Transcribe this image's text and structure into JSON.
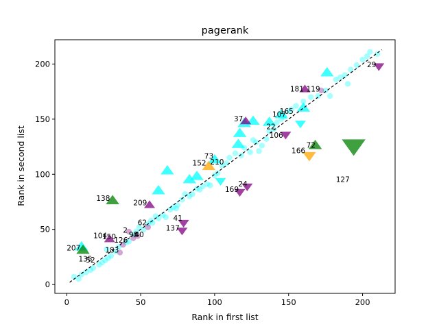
{
  "chart_data": {
    "type": "scatter",
    "title": "pagerank",
    "xlabel": "Rank in first list",
    "ylabel": "Rank in second list",
    "xlim": [
      -8,
      222
    ],
    "ylim": [
      -8,
      222
    ],
    "x_ticks": [
      0,
      50,
      100,
      150,
      200
    ],
    "y_ticks": [
      0,
      50,
      100,
      150,
      200
    ],
    "grid": false,
    "reference_line": {
      "from": [
        2,
        2
      ],
      "to": [
        213,
        213
      ],
      "style": "dashed",
      "color": "#000000"
    },
    "colors": {
      "cyan": "#00ffff",
      "purple": "#800080",
      "green": "#008000",
      "orange": "#ffa500"
    },
    "series": [
      {
        "marker": "circle",
        "color": "#00ffff",
        "points": [
          [
            5,
            7
          ],
          [
            8,
            5
          ],
          [
            10,
            9
          ],
          [
            13,
            11
          ],
          [
            16,
            13
          ],
          [
            18,
            15
          ],
          [
            22,
            18
          ],
          [
            24,
            20
          ],
          [
            26,
            22
          ],
          [
            28,
            24
          ],
          [
            30,
            26
          ],
          [
            33,
            30
          ],
          [
            27,
            32
          ],
          [
            35,
            34
          ],
          [
            40,
            38
          ],
          [
            42,
            39
          ],
          [
            45,
            45
          ],
          [
            47,
            48
          ],
          [
            49,
            52
          ],
          [
            52,
            50
          ],
          [
            55,
            55
          ],
          [
            57,
            58
          ],
          [
            58,
            56
          ],
          [
            60,
            62
          ],
          [
            62,
            60
          ],
          [
            65,
            63
          ],
          [
            67,
            61
          ],
          [
            70,
            68
          ],
          [
            72,
            70
          ],
          [
            74,
            69
          ],
          [
            75,
            72
          ],
          [
            78,
            77
          ],
          [
            80,
            82
          ],
          [
            83,
            80
          ],
          [
            85,
            82
          ],
          [
            88,
            87
          ],
          [
            90,
            86
          ],
          [
            92,
            89
          ],
          [
            95,
            91
          ],
          [
            97,
            90
          ],
          [
            100,
            99
          ],
          [
            102,
            101
          ],
          [
            105,
            108
          ],
          [
            108,
            110
          ],
          [
            110,
            115
          ],
          [
            114,
            119
          ],
          [
            118,
            117
          ],
          [
            120,
            124
          ],
          [
            124,
            120
          ],
          [
            126,
            131
          ],
          [
            128,
            129
          ],
          [
            130,
            121
          ],
          [
            132,
            126
          ],
          [
            135,
            132
          ],
          [
            137,
            139
          ],
          [
            140,
            141
          ],
          [
            142,
            147
          ],
          [
            145,
            150
          ],
          [
            147,
            152
          ],
          [
            150,
            157
          ],
          [
            152,
            159
          ],
          [
            155,
            162
          ],
          [
            160,
            166
          ],
          [
            165,
            170
          ],
          [
            170,
            171
          ],
          [
            175,
            176
          ],
          [
            178,
            171
          ],
          [
            182,
            186
          ],
          [
            185,
            188
          ],
          [
            188,
            190
          ],
          [
            192,
            195
          ],
          [
            196,
            199
          ],
          [
            200,
            204
          ],
          [
            203,
            207
          ],
          [
            205,
            211
          ],
          [
            210,
            209
          ],
          [
            190,
            182
          ]
        ]
      },
      {
        "marker": "circle",
        "color": "#800080",
        "points": [
          [
            36,
            29
          ],
          [
            38,
            36
          ],
          [
            45,
            42
          ],
          [
            48,
            44
          ],
          [
            55,
            52
          ],
          [
            42,
            48
          ],
          [
            172,
            176
          ]
        ]
      },
      {
        "marker": "triangle-up",
        "color": "#00ffff",
        "points": [
          [
            10,
            34
          ],
          [
            62,
            85
          ],
          [
            68,
            103
          ],
          [
            83,
            95
          ],
          [
            88,
            98
          ],
          [
            100,
            113
          ],
          [
            116,
            127
          ],
          [
            117,
            137
          ],
          [
            120,
            146
          ],
          [
            126,
            148
          ],
          [
            137,
            147
          ],
          [
            145,
            154
          ],
          [
            160,
            160
          ],
          [
            176,
            192
          ]
        ]
      },
      {
        "marker": "triangle-down",
        "color": "#00ffff",
        "points": [
          [
            104,
            94
          ],
          [
            158,
            146
          ]
        ]
      },
      {
        "marker": "triangle-up",
        "color": "#800080",
        "points": [
          [
            29,
            41
          ],
          [
            56,
            72
          ],
          [
            121,
            148
          ],
          [
            161,
            177
          ]
        ]
      },
      {
        "marker": "triangle-down",
        "color": "#800080",
        "points": [
          [
            117,
            84
          ],
          [
            122,
            89
          ],
          [
            78,
            49
          ],
          [
            79,
            56
          ],
          [
            148,
            136
          ],
          [
            211,
            198
          ]
        ]
      },
      {
        "marker": "triangle-up",
        "color": "#008000",
        "points": [
          [
            11,
            31
          ],
          [
            31,
            76
          ],
          [
            168,
            126
          ]
        ]
      },
      {
        "marker": "triangle-down",
        "color": "#008000",
        "points": [
          [
            194,
            126
          ]
        ]
      },
      {
        "marker": "triangle-up",
        "color": "#ffa500",
        "points": [
          [
            96,
            107
          ]
        ]
      },
      {
        "marker": "triangle-down",
        "color": "#ffa500",
        "points": [
          [
            164,
            117
          ]
        ]
      }
    ],
    "annotations": [
      {
        "text": "29",
        "x": 203,
        "y": 197
      },
      {
        "text": "181",
        "x": 151,
        "y": 175
      },
      {
        "text": "119",
        "x": 162,
        "y": 175
      },
      {
        "text": "165",
        "x": 144,
        "y": 155
      },
      {
        "text": "107",
        "x": 139,
        "y": 152
      },
      {
        "text": "37",
        "x": 113,
        "y": 148
      },
      {
        "text": "22",
        "x": 135,
        "y": 141
      },
      {
        "text": "106",
        "x": 137,
        "y": 133
      },
      {
        "text": "72",
        "x": 162,
        "y": 124
      },
      {
        "text": "166",
        "x": 152,
        "y": 119
      },
      {
        "text": "73",
        "x": 93,
        "y": 114
      },
      {
        "text": "152",
        "x": 85,
        "y": 108
      },
      {
        "text": "210",
        "x": 97,
        "y": 109
      },
      {
        "text": "127",
        "x": 182,
        "y": 93
      },
      {
        "text": "24",
        "x": 116,
        "y": 89
      },
      {
        "text": "169",
        "x": 107,
        "y": 84
      },
      {
        "text": "138",
        "x": 20,
        "y": 76
      },
      {
        "text": "209",
        "x": 45,
        "y": 72
      },
      {
        "text": "62",
        "x": 48,
        "y": 54
      },
      {
        "text": "41",
        "x": 72,
        "y": 58
      },
      {
        "text": "137",
        "x": 67,
        "y": 49
      },
      {
        "text": "2",
        "x": 38,
        "y": 47
      },
      {
        "text": "98",
        "x": 42,
        "y": 43
      },
      {
        "text": "40",
        "x": 46,
        "y": 43
      },
      {
        "text": "104",
        "x": 18,
        "y": 42
      },
      {
        "text": "150",
        "x": 24,
        "y": 41
      },
      {
        "text": "126",
        "x": 32,
        "y": 38
      },
      {
        "text": "183",
        "x": 26,
        "y": 29
      },
      {
        "text": "207",
        "x": 0,
        "y": 31
      },
      {
        "text": "135",
        "x": 8,
        "y": 21
      },
      {
        "text": "52",
        "x": 13,
        "y": 20
      }
    ]
  }
}
